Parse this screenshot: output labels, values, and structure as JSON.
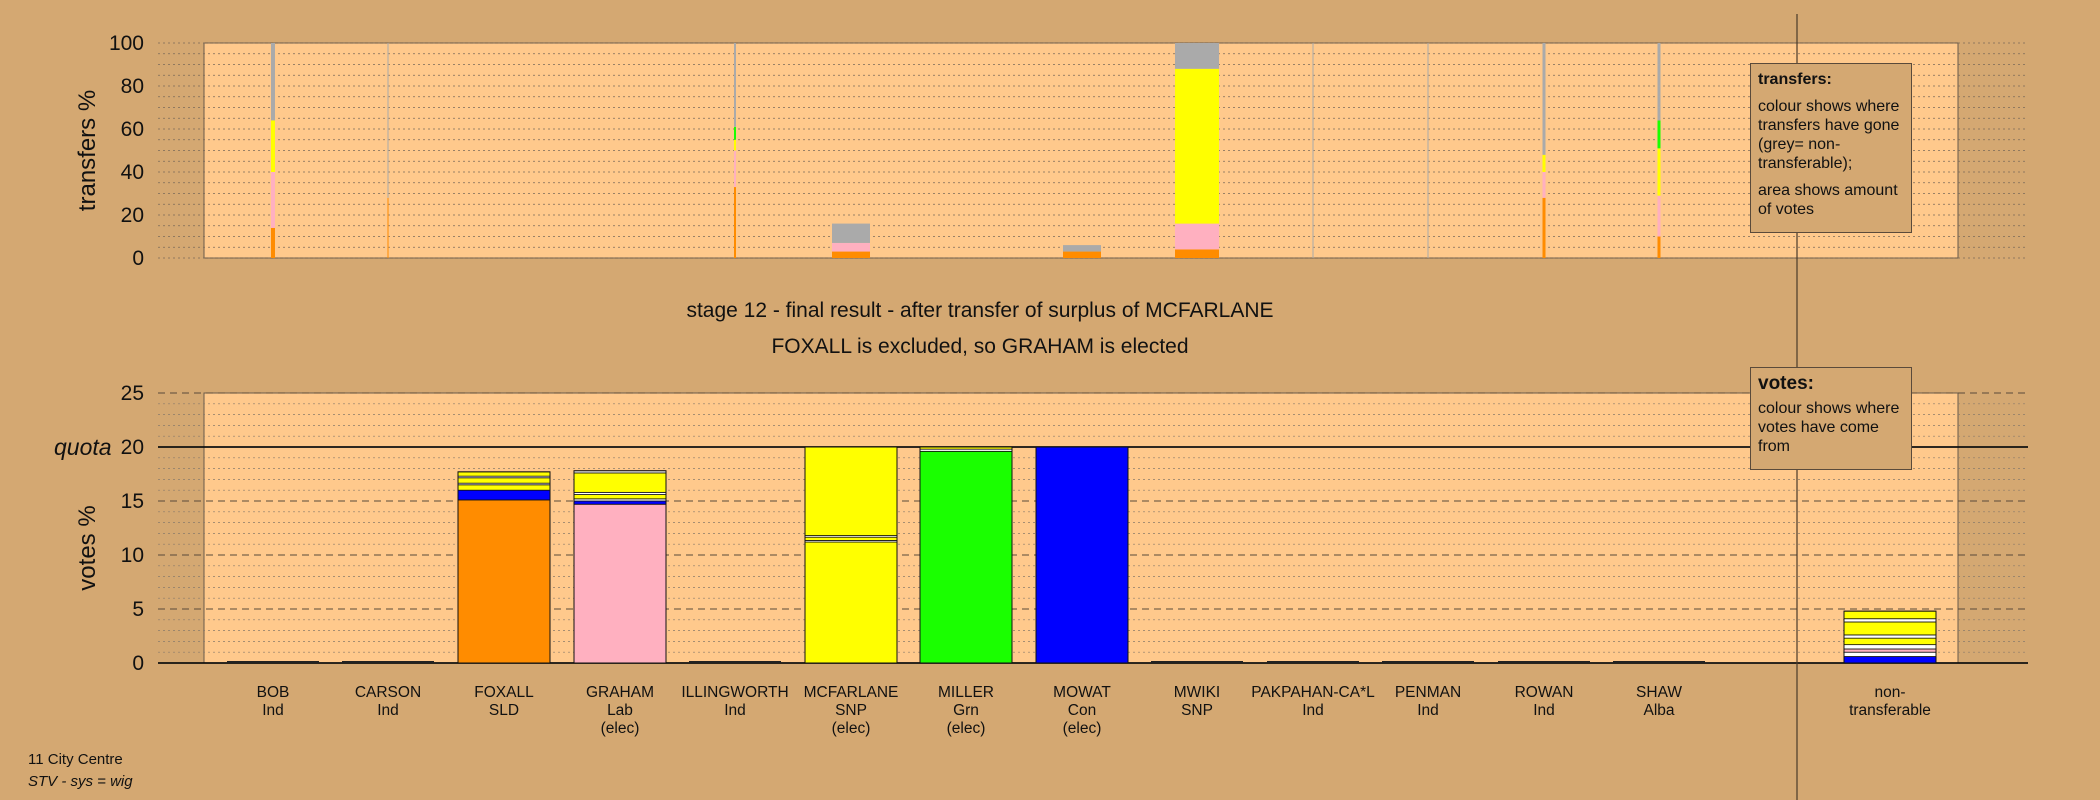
{
  "chart_data": [
    {
      "type": "bar",
      "stacked": true,
      "ylabel": "transfers %",
      "ylim": [
        0,
        100
      ],
      "yticks": [
        0,
        20,
        40,
        60,
        80,
        100
      ],
      "grid": true,
      "categories": [
        "BOB",
        "CARSON",
        "FOXALL",
        "GRAHAM",
        "ILLINGWORTH",
        "MCFARLANE",
        "MILLER",
        "MOWAT",
        "MWIKI",
        "PAKPAHAN-CA*L",
        "PENMAN",
        "ROWAN",
        "SHAW"
      ],
      "widths": [
        4,
        1,
        0,
        0,
        2,
        38,
        0,
        38,
        44,
        1,
        1,
        3,
        3
      ],
      "series": [
        {
          "color": "#ff8c00",
          "values": [
            14,
            28,
            0,
            0,
            33,
            3,
            0,
            3,
            4,
            0,
            0,
            28,
            10
          ]
        },
        {
          "color": "#ffb0c0",
          "values": [
            26,
            0,
            0,
            0,
            17,
            4,
            0,
            0,
            12,
            0,
            0,
            12,
            19
          ]
        },
        {
          "color": "#ffff00",
          "values": [
            24,
            0,
            0,
            0,
            5,
            0,
            0,
            0,
            72,
            0,
            0,
            8,
            22
          ]
        },
        {
          "color": "#1aff00",
          "values": [
            0,
            0,
            0,
            0,
            6,
            0,
            0,
            0,
            0,
            0,
            0,
            0,
            13
          ]
        },
        {
          "color": "#0000ff",
          "values": [
            0,
            0,
            0,
            0,
            0,
            0,
            0,
            0,
            0,
            0,
            0,
            0,
            0
          ]
        },
        {
          "color": "#aaaaaa",
          "values": [
            36,
            72,
            0,
            0,
            39,
            9,
            0,
            3,
            12,
            100,
            100,
            52,
            36
          ]
        }
      ],
      "legend_box": {
        "title": "transfers:",
        "text1": "colour shows where transfers have gone (grey= non-transferable);",
        "text2": "area shows amount of votes"
      }
    },
    {
      "type": "bar",
      "stacked": true,
      "ylabel": "votes %",
      "quota_label": "quota",
      "quota": 20,
      "ylim": [
        0,
        25
      ],
      "yticks": [
        0,
        5,
        10,
        15,
        20,
        25
      ],
      "grid": true,
      "categories": [
        "BOB",
        "CARSON",
        "FOXALL",
        "GRAHAM",
        "ILLINGWORTH",
        "MCFARLANE",
        "MILLER",
        "MOWAT",
        "MWIKI",
        "PAKPAHAN-CA*L",
        "PENMAN",
        "ROWAN",
        "SHAW",
        "non-transferable"
      ],
      "category_labels": [
        [
          "BOB",
          "Ind"
        ],
        [
          "CARSON",
          "Ind"
        ],
        [
          "FOXALL",
          "SLD"
        ],
        [
          "GRAHAM",
          "Lab",
          "(elec)"
        ],
        [
          "ILLINGWORTH",
          "Ind"
        ],
        [
          "MCFARLANE",
          "SNP",
          "(elec)"
        ],
        [
          "MILLER",
          "Grn",
          "(elec)"
        ],
        [
          "MOWAT",
          "Con",
          "(elec)"
        ],
        [
          "MWIKI",
          "SNP"
        ],
        [
          "PAKPAHAN-CA*L",
          "Ind"
        ],
        [
          "PENMAN",
          "Ind"
        ],
        [
          "ROWAN",
          "Ind"
        ],
        [
          "SHAW",
          "Alba"
        ],
        [
          "non-",
          "transferable"
        ]
      ],
      "stacks": [
        [],
        [],
        [
          [
            "#ff8c00",
            15.1
          ],
          [
            "#0000ff",
            0.9
          ],
          [
            "#ffff00",
            0.5
          ],
          [
            "#ffffff",
            0.15
          ],
          [
            "#ffff00",
            0.5
          ],
          [
            "#ffffff",
            0.15
          ],
          [
            "#ffff00",
            0.4
          ]
        ],
        [
          [
            "#ffb0c0",
            14.7
          ],
          [
            "#0000ff",
            0.3
          ],
          [
            "#ffffff",
            0.2
          ],
          [
            "#ffff00",
            0.4
          ],
          [
            "#ffffff",
            0.2
          ],
          [
            "#ffff00",
            1.8
          ],
          [
            "#ffffff",
            0.2
          ]
        ],
        [],
        [
          [
            "#ffff00",
            11.2
          ],
          [
            "#ffffff",
            0.15
          ],
          [
            "#ffff00",
            0.3
          ],
          [
            "#ffffff",
            0.15
          ],
          [
            "#ffff00",
            8.2
          ]
        ],
        [
          [
            "#1aff00",
            19.6
          ],
          [
            "#ffffff",
            0.2
          ],
          [
            "#ffff00",
            0.2
          ]
        ],
        [
          [
            "#0000ff",
            20.0
          ]
        ],
        [],
        [],
        [],
        [],
        [],
        [
          [
            "#0000ff",
            0.6
          ],
          [
            "#ffffff",
            0.4
          ],
          [
            "#ffb0c0",
            0.3
          ],
          [
            "#ffffff",
            0.4
          ],
          [
            "#ffff00",
            0.6
          ],
          [
            "#ffffff",
            0.3
          ],
          [
            "#ffff00",
            1.2
          ],
          [
            "#ffffff",
            0.3
          ],
          [
            "#ffff00",
            0.7
          ]
        ]
      ],
      "legend_box": {
        "title": "votes:",
        "text1": "colour shows where votes have come from"
      }
    }
  ],
  "headline1": "stage 12 - final result - after transfer of surplus of MCFARLANE",
  "headline2": "FOXALL is excluded, so GRAHAM is elected",
  "footer": {
    "line1": "11 City Centre",
    "line2": "STV - sys = wig"
  }
}
